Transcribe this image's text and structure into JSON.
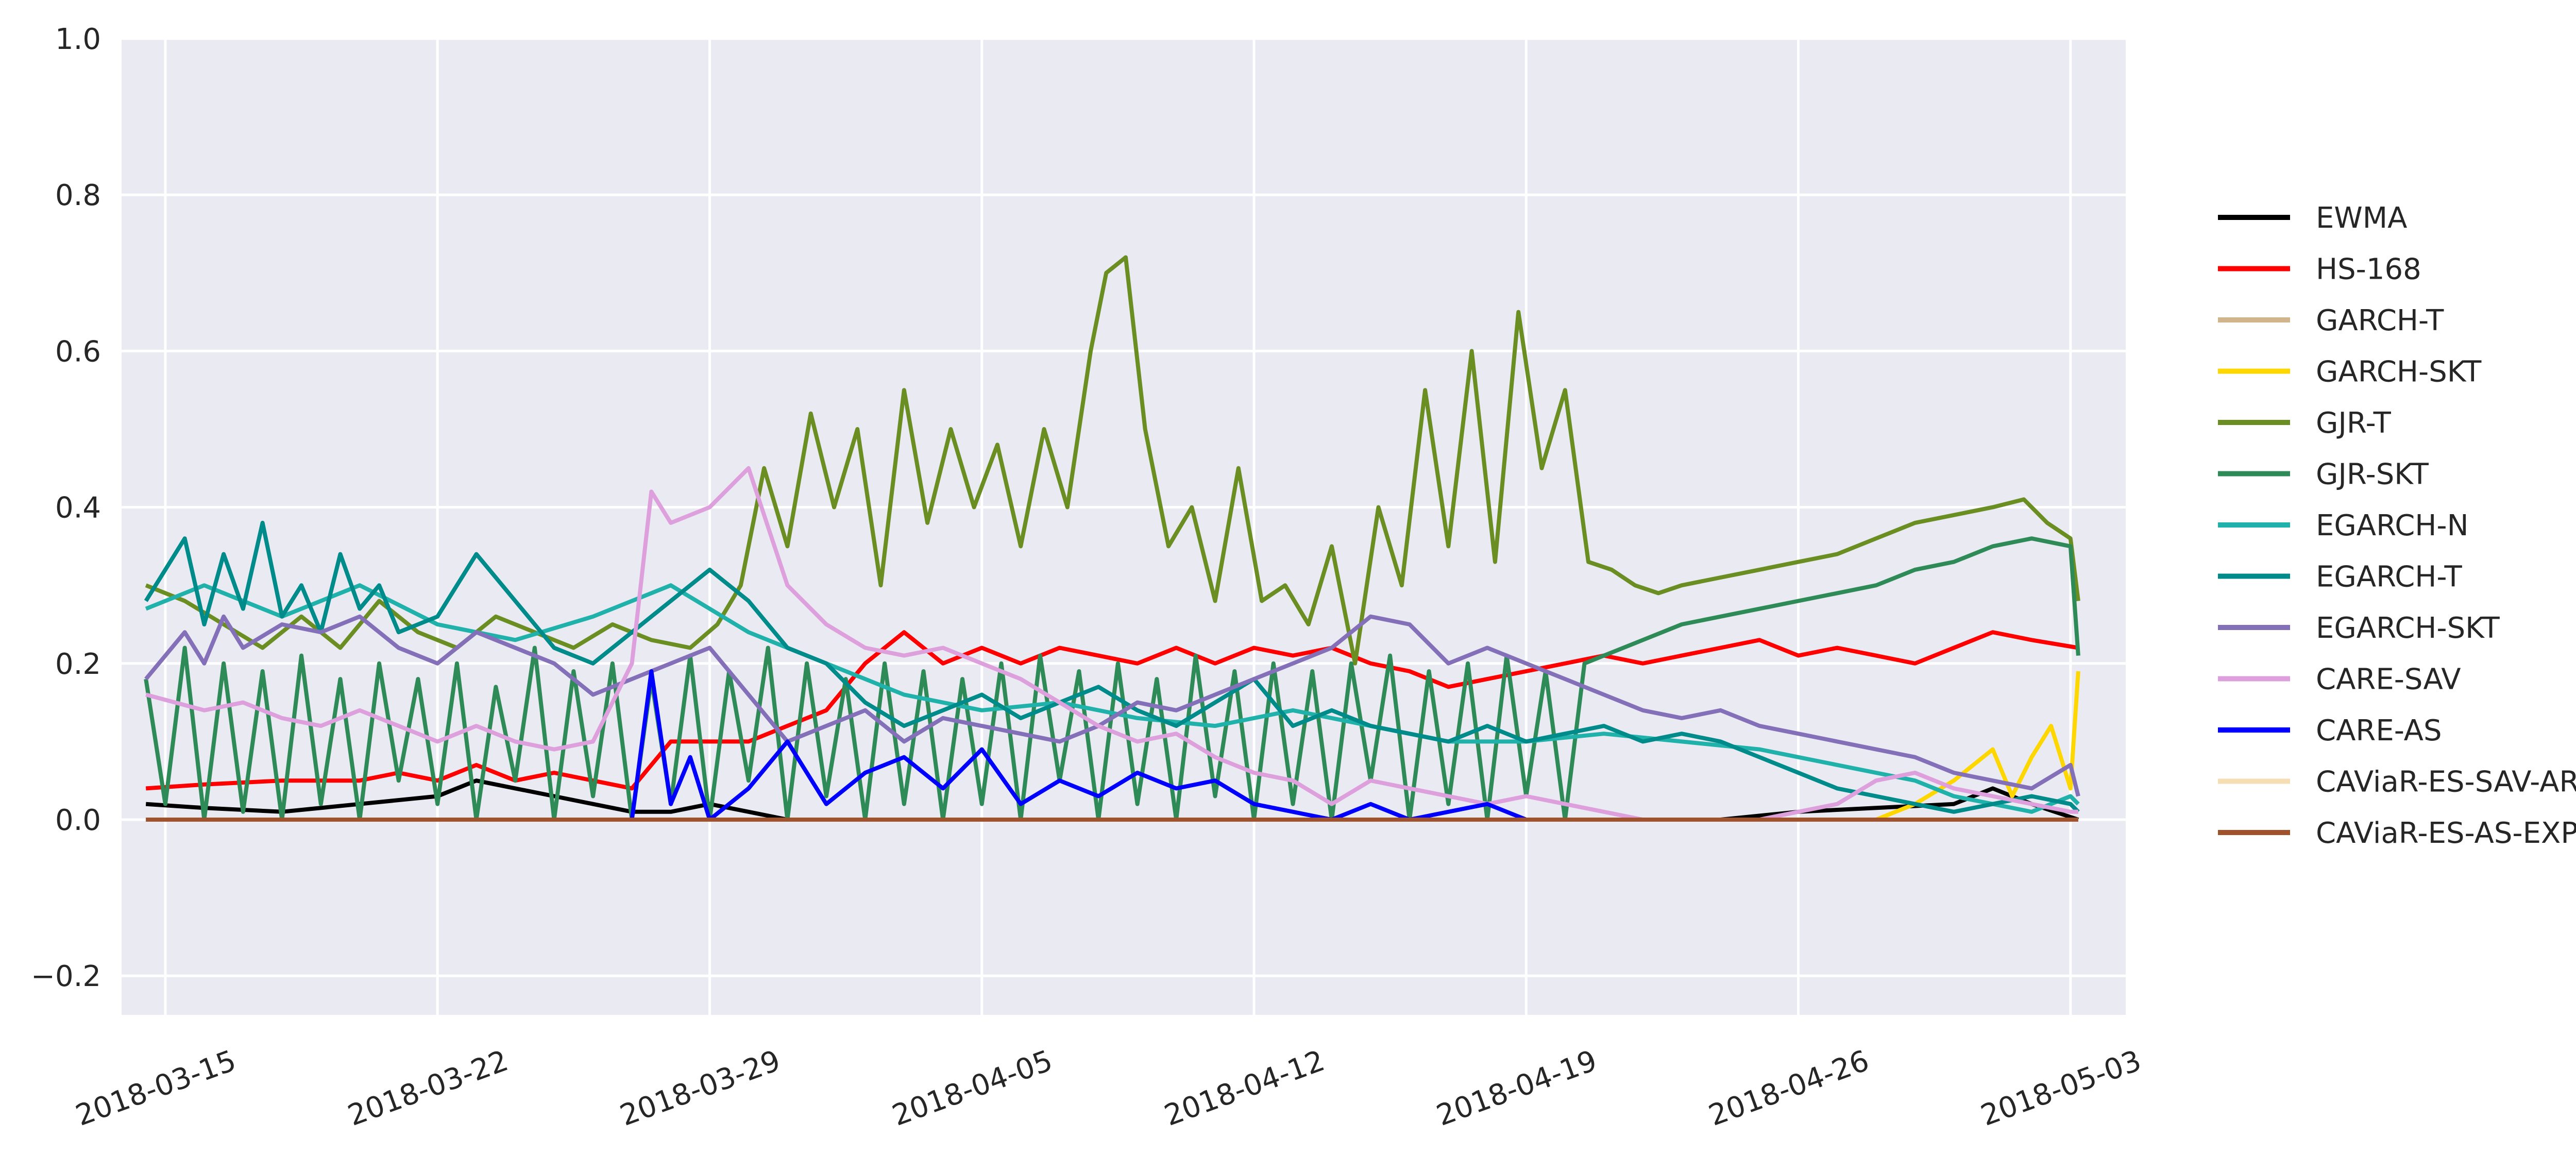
{
  "chart_data": {
    "type": "line",
    "title": "",
    "xlabel": "",
    "ylabel": "",
    "ylim": [
      -0.25,
      1.0
    ],
    "xlim": [
      "2018-03-13T20:00",
      "2018-05-04T10:00"
    ],
    "yticks": [
      "−0.2",
      "0.0",
      "0.2",
      "0.4",
      "0.6",
      "0.8",
      "1.0"
    ],
    "yvalues": [
      -0.2,
      0.0,
      0.2,
      0.4,
      0.6,
      0.8,
      1.0
    ],
    "xticks": [
      "2018-03-15",
      "2018-03-22",
      "2018-03-29",
      "2018-04-05",
      "2018-04-12",
      "2018-04-19",
      "2018-04-26",
      "2018-05-03"
    ],
    "xtick_values": [
      0,
      7,
      14,
      21,
      28,
      35,
      42,
      49
    ],
    "x_origin_date": "2018-03-15",
    "grid": true,
    "legend_position": "right",
    "series": [
      {
        "name": "EWMA",
        "color": "#000000",
        "x": [
          -0.5,
          1,
          3,
          5,
          7,
          8,
          9,
          10,
          11,
          12,
          13,
          14,
          14.5,
          15,
          16,
          17,
          20,
          25,
          30,
          35,
          40,
          42,
          44,
          46,
          47,
          48,
          49.2
        ],
        "values": [
          0.02,
          0.015,
          0.01,
          0.02,
          0.03,
          0.05,
          0.04,
          0.03,
          0.02,
          0.01,
          0.01,
          0.02,
          0.015,
          0.01,
          0,
          0,
          0,
          0,
          0,
          0,
          0,
          0.01,
          0.015,
          0.02,
          0.04,
          0.02,
          0
        ]
      },
      {
        "name": "HS-168",
        "color": "#ff0000",
        "x": [
          -0.5,
          1,
          3,
          5,
          6,
          7,
          8,
          9,
          10,
          11,
          12,
          13,
          14,
          15,
          16,
          17,
          18,
          19,
          20,
          21,
          22,
          23,
          24,
          25,
          26,
          27,
          28,
          29,
          30,
          31,
          32,
          33,
          34,
          35,
          36,
          37,
          38,
          39,
          40,
          41,
          42,
          43,
          44,
          45,
          46,
          47,
          48,
          49.2
        ],
        "values": [
          0.04,
          0.045,
          0.05,
          0.05,
          0.06,
          0.05,
          0.07,
          0.05,
          0.06,
          0.05,
          0.04,
          0.1,
          0.1,
          0.1,
          0.12,
          0.14,
          0.2,
          0.24,
          0.2,
          0.22,
          0.2,
          0.22,
          0.21,
          0.2,
          0.22,
          0.2,
          0.22,
          0.21,
          0.22,
          0.2,
          0.19,
          0.17,
          0.18,
          0.19,
          0.2,
          0.21,
          0.2,
          0.21,
          0.22,
          0.23,
          0.21,
          0.22,
          0.21,
          0.2,
          0.22,
          0.24,
          0.23,
          0.22
        ]
      },
      {
        "name": "GARCH-T",
        "color": "#d2b48c",
        "x": [
          -0.5,
          49.2
        ],
        "values": [
          0,
          0
        ]
      },
      {
        "name": "GARCH-SKT",
        "color": "#ffd700",
        "x": [
          -0.5,
          44,
          45,
          46,
          47,
          47.5,
          48,
          48.5,
          49,
          49.2
        ],
        "values": [
          0,
          0,
          0.02,
          0.05,
          0.09,
          0.03,
          0.08,
          0.12,
          0.04,
          0.19
        ]
      },
      {
        "name": "GJR-T",
        "color": "#6b8e23",
        "x": [
          -0.5,
          0.5,
          1.5,
          2.5,
          3.5,
          4.5,
          5.5,
          6.5,
          7.5,
          8.5,
          9.5,
          10.5,
          11.5,
          12.5,
          13.5,
          14.2,
          14.8,
          15.4,
          16,
          16.6,
          17.2,
          17.8,
          18.4,
          19,
          19.6,
          20.2,
          20.8,
          21.4,
          22,
          22.6,
          23.2,
          23.8,
          24.2,
          24.7,
          25.2,
          25.8,
          26.4,
          27,
          27.6,
          28.2,
          28.8,
          29.4,
          30,
          30.6,
          31.2,
          31.8,
          32.4,
          33,
          33.6,
          34.2,
          34.8,
          35.4,
          36,
          36.6,
          37.2,
          37.8,
          38.4,
          39,
          40,
          41,
          42,
          43,
          44,
          45,
          46,
          47,
          47.8,
          48.4,
          49,
          49.2
        ],
        "values": [
          0.3,
          0.28,
          0.25,
          0.22,
          0.26,
          0.22,
          0.28,
          0.24,
          0.22,
          0.26,
          0.24,
          0.22,
          0.25,
          0.23,
          0.22,
          0.25,
          0.3,
          0.45,
          0.35,
          0.52,
          0.4,
          0.5,
          0.3,
          0.55,
          0.38,
          0.5,
          0.4,
          0.48,
          0.35,
          0.5,
          0.4,
          0.6,
          0.7,
          0.72,
          0.5,
          0.35,
          0.4,
          0.28,
          0.45,
          0.28,
          0.3,
          0.25,
          0.35,
          0.2,
          0.4,
          0.3,
          0.55,
          0.35,
          0.6,
          0.33,
          0.65,
          0.45,
          0.55,
          0.33,
          0.32,
          0.3,
          0.29,
          0.3,
          0.31,
          0.32,
          0.33,
          0.34,
          0.36,
          0.38,
          0.39,
          0.4,
          0.41,
          0.38,
          0.36,
          0.28
        ]
      },
      {
        "name": "GJR-SKT",
        "color": "#2e8b57",
        "x": [
          -0.5,
          0,
          0.5,
          1,
          1.5,
          2,
          2.5,
          3,
          3.5,
          4,
          4.5,
          5,
          5.5,
          6,
          6.5,
          7,
          7.5,
          8,
          8.5,
          9,
          9.5,
          10,
          10.5,
          11,
          11.5,
          12,
          12.5,
          13,
          13.5,
          14,
          14.5,
          15,
          15.5,
          16,
          16.5,
          17,
          17.5,
          18,
          18.5,
          19,
          19.5,
          20,
          20.5,
          21,
          21.5,
          22,
          22.5,
          23,
          23.5,
          24,
          24.5,
          25,
          25.5,
          26,
          26.5,
          27,
          27.5,
          28,
          28.5,
          29,
          29.5,
          30,
          30.5,
          31,
          31.5,
          32,
          32.5,
          33,
          33.5,
          34,
          34.5,
          35,
          35.5,
          36,
          36.5,
          37,
          38,
          39,
          40,
          41,
          42,
          43,
          44,
          45,
          46,
          47,
          48,
          49,
          49.2
        ],
        "values": [
          0.18,
          0.02,
          0.22,
          0,
          0.2,
          0.01,
          0.19,
          0,
          0.21,
          0.02,
          0.18,
          0,
          0.2,
          0.05,
          0.18,
          0.02,
          0.2,
          0,
          0.17,
          0.05,
          0.22,
          0,
          0.19,
          0.03,
          0.2,
          0,
          0.18,
          0.02,
          0.21,
          0,
          0.19,
          0.05,
          0.22,
          0,
          0.2,
          0.03,
          0.18,
          0,
          0.2,
          0.02,
          0.19,
          0,
          0.18,
          0.02,
          0.2,
          0,
          0.21,
          0.05,
          0.19,
          0,
          0.2,
          0.02,
          0.18,
          0,
          0.21,
          0.03,
          0.19,
          0,
          0.2,
          0.02,
          0.19,
          0,
          0.2,
          0.05,
          0.21,
          0,
          0.19,
          0.02,
          0.2,
          0,
          0.21,
          0.03,
          0.19,
          0,
          0.2,
          0.21,
          0.23,
          0.25,
          0.26,
          0.27,
          0.28,
          0.29,
          0.3,
          0.32,
          0.33,
          0.35,
          0.36,
          0.35,
          0.21
        ]
      },
      {
        "name": "EGARCH-N",
        "color": "#20b2aa",
        "x": [
          -0.5,
          1,
          3,
          5,
          7,
          9,
          11,
          13,
          15,
          17,
          19,
          21,
          23,
          25,
          27,
          29,
          31,
          33,
          35,
          37,
          39,
          41,
          43,
          45,
          46,
          47,
          48,
          49,
          49.2
        ],
        "values": [
          0.27,
          0.3,
          0.26,
          0.3,
          0.25,
          0.23,
          0.26,
          0.3,
          0.24,
          0.2,
          0.16,
          0.14,
          0.15,
          0.13,
          0.12,
          0.14,
          0.12,
          0.1,
          0.1,
          0.11,
          0.1,
          0.09,
          0.07,
          0.05,
          0.03,
          0.02,
          0.01,
          0.03,
          0.02
        ]
      },
      {
        "name": "EGARCH-T",
        "color": "#008b8b",
        "x": [
          -0.5,
          0.5,
          1,
          1.5,
          2,
          2.5,
          3,
          3.5,
          4,
          4.5,
          5,
          5.5,
          6,
          7,
          8,
          9,
          10,
          11,
          12,
          13,
          14,
          15,
          16,
          17,
          18,
          19,
          20,
          21,
          22,
          23,
          24,
          25,
          26,
          27,
          28,
          29,
          30,
          31,
          32,
          33,
          34,
          35,
          36,
          37,
          38,
          39,
          40,
          41,
          42,
          43,
          44,
          45,
          46,
          47,
          48,
          49,
          49.2
        ],
        "values": [
          0.28,
          0.36,
          0.25,
          0.34,
          0.27,
          0.38,
          0.26,
          0.3,
          0.24,
          0.34,
          0.27,
          0.3,
          0.24,
          0.26,
          0.34,
          0.28,
          0.22,
          0.2,
          0.24,
          0.28,
          0.32,
          0.28,
          0.22,
          0.2,
          0.15,
          0.12,
          0.14,
          0.16,
          0.13,
          0.15,
          0.17,
          0.14,
          0.12,
          0.15,
          0.18,
          0.12,
          0.14,
          0.12,
          0.11,
          0.1,
          0.12,
          0.1,
          0.11,
          0.12,
          0.1,
          0.11,
          0.1,
          0.08,
          0.06,
          0.04,
          0.03,
          0.02,
          0.01,
          0.02,
          0.03,
          0.02,
          0.01
        ]
      },
      {
        "name": "EGARCH-SKT",
        "color": "#8470b8",
        "x": [
          -0.5,
          0.5,
          1,
          1.5,
          2,
          3,
          4,
          5,
          6,
          7,
          8,
          9,
          10,
          11,
          12,
          13,
          14,
          15,
          16,
          17,
          18,
          19,
          20,
          21,
          22,
          23,
          24,
          25,
          26,
          27,
          28,
          29,
          30,
          31,
          32,
          33,
          34,
          35,
          36,
          37,
          38,
          39,
          40,
          41,
          42,
          43,
          44,
          45,
          46,
          47,
          48,
          49,
          49.2
        ],
        "values": [
          0.18,
          0.24,
          0.2,
          0.26,
          0.22,
          0.25,
          0.24,
          0.26,
          0.22,
          0.2,
          0.24,
          0.22,
          0.2,
          0.16,
          0.18,
          0.2,
          0.22,
          0.16,
          0.1,
          0.12,
          0.14,
          0.1,
          0.13,
          0.12,
          0.11,
          0.1,
          0.12,
          0.15,
          0.14,
          0.16,
          0.18,
          0.2,
          0.22,
          0.26,
          0.25,
          0.2,
          0.22,
          0.2,
          0.18,
          0.16,
          0.14,
          0.13,
          0.14,
          0.12,
          0.11,
          0.1,
          0.09,
          0.08,
          0.06,
          0.05,
          0.04,
          0.07,
          0.03
        ]
      },
      {
        "name": "CARE-SAV",
        "color": "#dda0dd",
        "x": [
          -0.5,
          1,
          2,
          3,
          4,
          5,
          6,
          7,
          8,
          9,
          10,
          11,
          12,
          12.5,
          13,
          14,
          15,
          16,
          17,
          18,
          19,
          20,
          21,
          22,
          23,
          24,
          25,
          26,
          27,
          28,
          29,
          30,
          31,
          32,
          33,
          34,
          35,
          36,
          37,
          38,
          39,
          40,
          41,
          42,
          43,
          44,
          45,
          46,
          47,
          48,
          49,
          49.2
        ],
        "values": [
          0.16,
          0.14,
          0.15,
          0.13,
          0.12,
          0.14,
          0.12,
          0.1,
          0.12,
          0.1,
          0.09,
          0.1,
          0.2,
          0.42,
          0.38,
          0.4,
          0.45,
          0.3,
          0.25,
          0.22,
          0.21,
          0.22,
          0.2,
          0.18,
          0.15,
          0.12,
          0.1,
          0.11,
          0.08,
          0.06,
          0.05,
          0.02,
          0.05,
          0.04,
          0.03,
          0.02,
          0.03,
          0.02,
          0.01,
          0,
          0,
          0,
          0,
          0.01,
          0.02,
          0.05,
          0.06,
          0.04,
          0.03,
          0.02,
          0.01,
          0.01
        ]
      },
      {
        "name": "CARE-AS",
        "color": "#0000ff",
        "x": [
          -0.5,
          12,
          12.5,
          13,
          13.5,
          14,
          15,
          16,
          17,
          18,
          19,
          20,
          21,
          22,
          23,
          24,
          25,
          26,
          27,
          28,
          29,
          30,
          31,
          32,
          33,
          34,
          35,
          49.2
        ],
        "values": [
          0,
          0,
          0.19,
          0.02,
          0.08,
          0,
          0.04,
          0.1,
          0.02,
          0.06,
          0.08,
          0.04,
          0.09,
          0.02,
          0.05,
          0.03,
          0.06,
          0.04,
          0.05,
          0.02,
          0.01,
          0,
          0.02,
          0,
          0.01,
          0.02,
          0,
          0
        ]
      },
      {
        "name": "CAViaR-ES-SAV-AR",
        "color": "#f5deb3",
        "x": [
          -0.5,
          49.2
        ],
        "values": [
          0,
          0
        ]
      },
      {
        "name": "CAViaR-ES-AS-EXP",
        "color": "#a0522d",
        "x": [
          -0.5,
          49.2
        ],
        "values": [
          0,
          0
        ]
      }
    ]
  }
}
